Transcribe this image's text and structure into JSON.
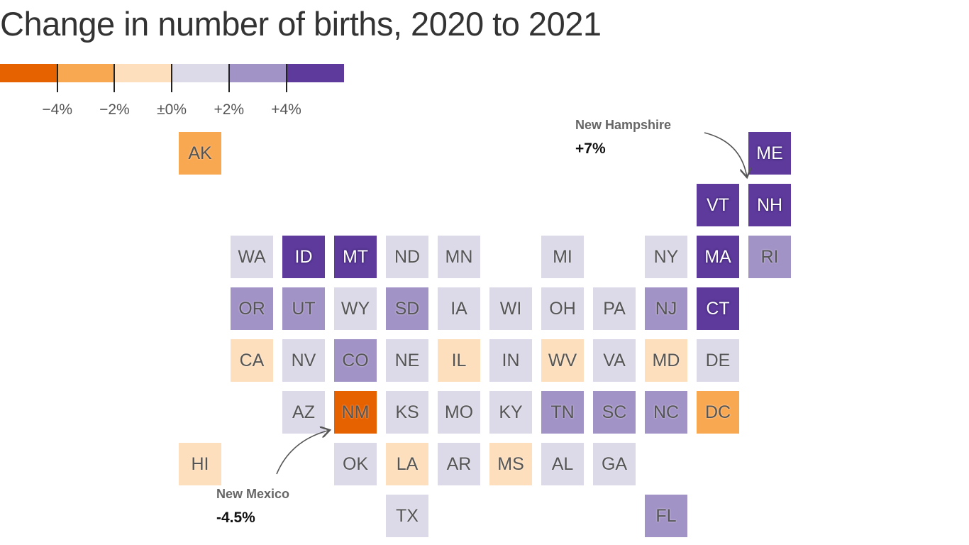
{
  "chart_data": {
    "type": "heatmap",
    "subtype": "tile-grid-map",
    "title": "Change in number of births, 2020 to 2021",
    "legend": {
      "placement": "top-left",
      "tick_labels": [
        "−4%",
        "−2%",
        "±0%",
        "+2%",
        "+4%"
      ],
      "bins": [
        {
          "range": "below −4%",
          "color": "#e66100"
        },
        {
          "range": "−4% to −2%",
          "color": "#f9a852"
        },
        {
          "range": "−2% to ±0%",
          "color": "#fddfbd"
        },
        {
          "range": "±0% to +2%",
          "color": "#dcd9e8"
        },
        {
          "range": "+2% to +4%",
          "color": "#a293c6"
        },
        {
          "range": "above +4%",
          "color": "#5d3a9b"
        }
      ]
    },
    "states": [
      {
        "abbr": "AK",
        "bin": 1
      },
      {
        "abbr": "ME",
        "bin": 5
      },
      {
        "abbr": "VT",
        "bin": 5
      },
      {
        "abbr": "NH",
        "bin": 5
      },
      {
        "abbr": "WA",
        "bin": 3
      },
      {
        "abbr": "ID",
        "bin": 5
      },
      {
        "abbr": "MT",
        "bin": 5
      },
      {
        "abbr": "ND",
        "bin": 3
      },
      {
        "abbr": "MN",
        "bin": 3
      },
      {
        "abbr": "MI",
        "bin": 3
      },
      {
        "abbr": "NY",
        "bin": 3
      },
      {
        "abbr": "MA",
        "bin": 5
      },
      {
        "abbr": "RI",
        "bin": 4
      },
      {
        "abbr": "OR",
        "bin": 4
      },
      {
        "abbr": "UT",
        "bin": 4
      },
      {
        "abbr": "WY",
        "bin": 3
      },
      {
        "abbr": "SD",
        "bin": 4
      },
      {
        "abbr": "IA",
        "bin": 3
      },
      {
        "abbr": "WI",
        "bin": 3
      },
      {
        "abbr": "OH",
        "bin": 3
      },
      {
        "abbr": "PA",
        "bin": 3
      },
      {
        "abbr": "NJ",
        "bin": 4
      },
      {
        "abbr": "CT",
        "bin": 5
      },
      {
        "abbr": "CA",
        "bin": 2
      },
      {
        "abbr": "NV",
        "bin": 3
      },
      {
        "abbr": "CO",
        "bin": 4
      },
      {
        "abbr": "NE",
        "bin": 3
      },
      {
        "abbr": "IL",
        "bin": 2
      },
      {
        "abbr": "IN",
        "bin": 3
      },
      {
        "abbr": "WV",
        "bin": 2
      },
      {
        "abbr": "VA",
        "bin": 3
      },
      {
        "abbr": "MD",
        "bin": 2
      },
      {
        "abbr": "DE",
        "bin": 3
      },
      {
        "abbr": "AZ",
        "bin": 3
      },
      {
        "abbr": "NM",
        "bin": 0
      },
      {
        "abbr": "KS",
        "bin": 3
      },
      {
        "abbr": "MO",
        "bin": 3
      },
      {
        "abbr": "KY",
        "bin": 3
      },
      {
        "abbr": "TN",
        "bin": 4
      },
      {
        "abbr": "SC",
        "bin": 4
      },
      {
        "abbr": "NC",
        "bin": 4
      },
      {
        "abbr": "DC",
        "bin": 1
      },
      {
        "abbr": "HI",
        "bin": 2
      },
      {
        "abbr": "OK",
        "bin": 3
      },
      {
        "abbr": "LA",
        "bin": 2
      },
      {
        "abbr": "AR",
        "bin": 3
      },
      {
        "abbr": "MS",
        "bin": 2
      },
      {
        "abbr": "AL",
        "bin": 3
      },
      {
        "abbr": "GA",
        "bin": 3
      },
      {
        "abbr": "TX",
        "bin": 3
      },
      {
        "abbr": "FL",
        "bin": 4
      }
    ],
    "annotations": [
      {
        "state": "NH",
        "name": "New Hampshire",
        "value": "+7%"
      },
      {
        "state": "NM",
        "name": "New Mexico",
        "value": "-4.5%"
      }
    ]
  }
}
